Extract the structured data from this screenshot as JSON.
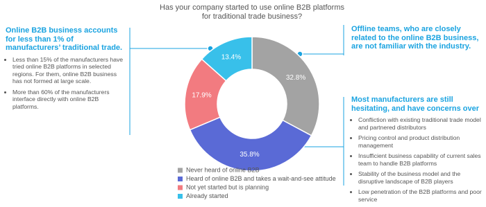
{
  "chart_data": {
    "type": "pie",
    "title": [
      "Has your company started to use online B2B platforms",
      "for traditional trade business?"
    ],
    "categories": [
      "Never heard of online B2B",
      "Heard of online B2B and takes a wait-and-see attitude",
      "Not yet started but is planning",
      "Already started"
    ],
    "values": [
      32.8,
      35.8,
      17.9,
      13.4
    ],
    "value_labels": [
      "32.8%",
      "35.8%",
      "17.9%",
      "13.4%"
    ],
    "colors": [
      "#a3a3a3",
      "#5a6ad6",
      "#f27b80",
      "#38c0ea"
    ]
  },
  "left_panel": {
    "heading": "Online B2B business accounts for less than 1% of manufacturers’ traditional trade.",
    "bullets": [
      "Less than 15% of the manufacturers have tried online B2B platforms in selected regions. For them, online B2B business has not formed at large scale.",
      "More than 60% of the manufacturers interface directly with online B2B platforms."
    ]
  },
  "right_top_panel": {
    "heading": "Offline teams, who are closely related to the online B2B business, are not familiar with the industry."
  },
  "right_bottom_panel": {
    "heading": "Most manufacturers are still hesitating, and have concerns over",
    "bullets": [
      "Confliction with existing traditional trade model and partnered distributors",
      "Pricing control and product distribution management",
      "Insufficient business capability of current sales team to handle B2B platforms",
      "Stability of the business model and the disruptive landscape of B2B players",
      "Low penetration of the B2B platforms and poor service"
    ]
  }
}
